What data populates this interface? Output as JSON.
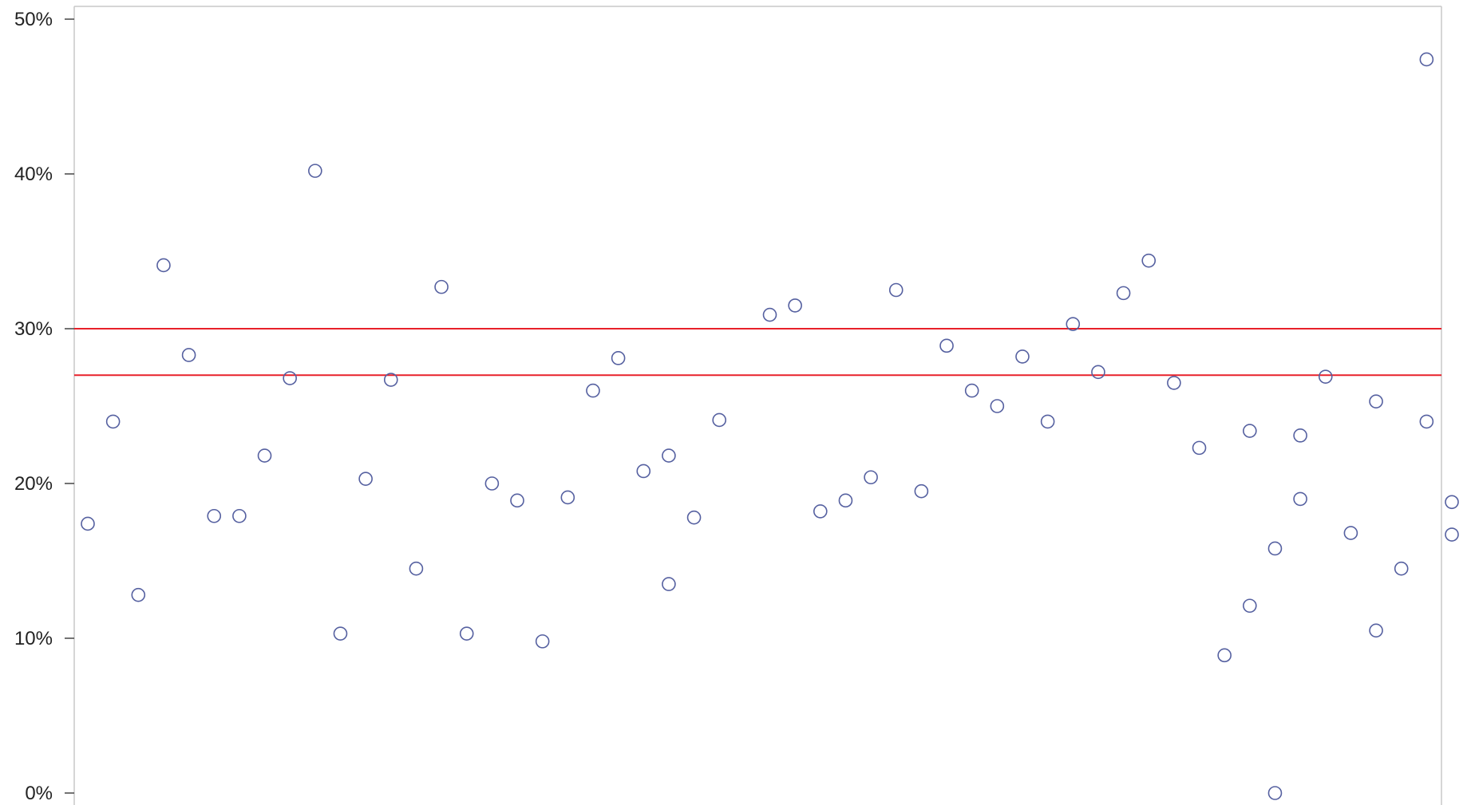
{
  "chart_data": {
    "type": "scatter",
    "title": "",
    "xlabel": "",
    "ylabel": "",
    "ylim": [
      0,
      50
    ],
    "yticks": [
      0,
      10,
      20,
      30,
      40,
      50
    ],
    "ytick_labels": [
      "0%",
      "10%",
      "20%",
      "30%",
      "40%",
      "50%"
    ],
    "grid": false,
    "legend": "none",
    "marker": "open-circle",
    "colors": {
      "marker": "#5560a0",
      "reference_line": "#e8202a",
      "frame": "#c8c8c8"
    },
    "reference_lines": [
      30,
      27
    ],
    "points": [
      {
        "x": 1,
        "y": 17.4
      },
      {
        "x": 2,
        "y": 24.0
      },
      {
        "x": 3,
        "y": 12.8
      },
      {
        "x": 4,
        "y": 34.1
      },
      {
        "x": 5,
        "y": 28.3
      },
      {
        "x": 6,
        "y": 17.9
      },
      {
        "x": 7,
        "y": 17.9
      },
      {
        "x": 8,
        "y": 21.8
      },
      {
        "x": 9,
        "y": 26.8
      },
      {
        "x": 10,
        "y": 40.2
      },
      {
        "x": 11,
        "y": 10.3
      },
      {
        "x": 12,
        "y": 20.3
      },
      {
        "x": 13,
        "y": 26.7
      },
      {
        "x": 14,
        "y": 14.5
      },
      {
        "x": 15,
        "y": 32.7
      },
      {
        "x": 16,
        "y": 10.3
      },
      {
        "x": 17,
        "y": 20.0
      },
      {
        "x": 18,
        "y": 18.9
      },
      {
        "x": 19,
        "y": 9.8
      },
      {
        "x": 20,
        "y": 19.1
      },
      {
        "x": 21,
        "y": 26.0
      },
      {
        "x": 22,
        "y": 28.1
      },
      {
        "x": 23,
        "y": 20.8
      },
      {
        "x": 24,
        "y": 21.8
      },
      {
        "x": 24,
        "y": 13.5
      },
      {
        "x": 25,
        "y": 17.8
      },
      {
        "x": 26,
        "y": 24.1
      },
      {
        "x": 28,
        "y": 30.9
      },
      {
        "x": 29,
        "y": 31.5
      },
      {
        "x": 30,
        "y": 18.2
      },
      {
        "x": 31,
        "y": 18.9
      },
      {
        "x": 32,
        "y": 20.4
      },
      {
        "x": 33,
        "y": 32.5
      },
      {
        "x": 34,
        "y": 19.5
      },
      {
        "x": 35,
        "y": 28.9
      },
      {
        "x": 36,
        "y": 26.0
      },
      {
        "x": 37,
        "y": 25.0
      },
      {
        "x": 38,
        "y": 28.2
      },
      {
        "x": 39,
        "y": 24.0
      },
      {
        "x": 40,
        "y": 30.3
      },
      {
        "x": 41,
        "y": 27.2
      },
      {
        "x": 42,
        "y": 32.3
      },
      {
        "x": 43,
        "y": 34.4
      },
      {
        "x": 44,
        "y": 26.5
      },
      {
        "x": 45,
        "y": 22.3
      },
      {
        "x": 46,
        "y": 8.9
      },
      {
        "x": 47,
        "y": 23.4
      },
      {
        "x": 47,
        "y": 12.1
      },
      {
        "x": 48,
        "y": 15.8
      },
      {
        "x": 48,
        "y": 0.0
      },
      {
        "x": 49,
        "y": 23.1
      },
      {
        "x": 49,
        "y": 19.0
      },
      {
        "x": 50,
        "y": 26.9
      },
      {
        "x": 51,
        "y": 16.8
      },
      {
        "x": 52,
        "y": 25.3
      },
      {
        "x": 52,
        "y": 10.5
      },
      {
        "x": 53,
        "y": 14.5
      },
      {
        "x": 54,
        "y": 47.4
      },
      {
        "x": 54,
        "y": 24.0
      },
      {
        "x": 55,
        "y": 18.8
      },
      {
        "x": 55,
        "y": 16.7
      }
    ]
  }
}
